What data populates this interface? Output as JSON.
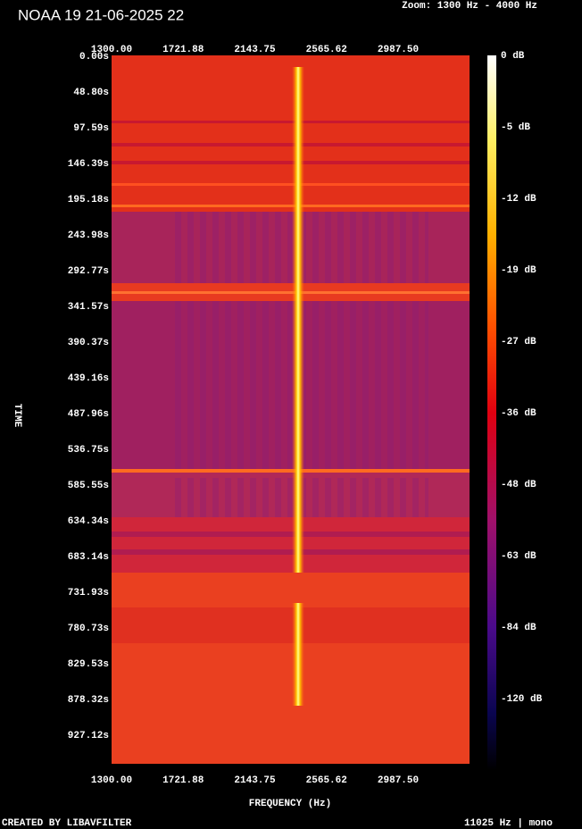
{
  "header": {
    "title": "NOAA 19 21-06-2025 22",
    "zoom": "Zoom: 1300 Hz - 4000 Hz"
  },
  "frequency_axis": {
    "labels": [
      "1300.00",
      "1721.88",
      "2143.75",
      "2565.62",
      "2987.50"
    ],
    "title": "FREQUENCY (Hz)"
  },
  "time_axis": {
    "title": "TIME",
    "labels": [
      "0.00s",
      "48.80s",
      "97.59s",
      "146.39s",
      "195.18s",
      "243.98s",
      "292.77s",
      "341.57s",
      "390.37s",
      "439.16s",
      "487.96s",
      "536.75s",
      "585.55s",
      "634.34s",
      "683.14s",
      "731.93s",
      "780.73s",
      "829.53s",
      "878.32s",
      "927.12s"
    ]
  },
  "colorbar": {
    "labels": [
      "0 dB",
      "-5 dB",
      "-12 dB",
      "-19 dB",
      "-27 dB",
      "-36 dB",
      "-48 dB",
      "-63 dB",
      "-84 dB",
      "-120 dB"
    ]
  },
  "footer": {
    "credit": "CREATED BY LIBAVFILTER",
    "format": "11025 Hz | mono"
  }
}
